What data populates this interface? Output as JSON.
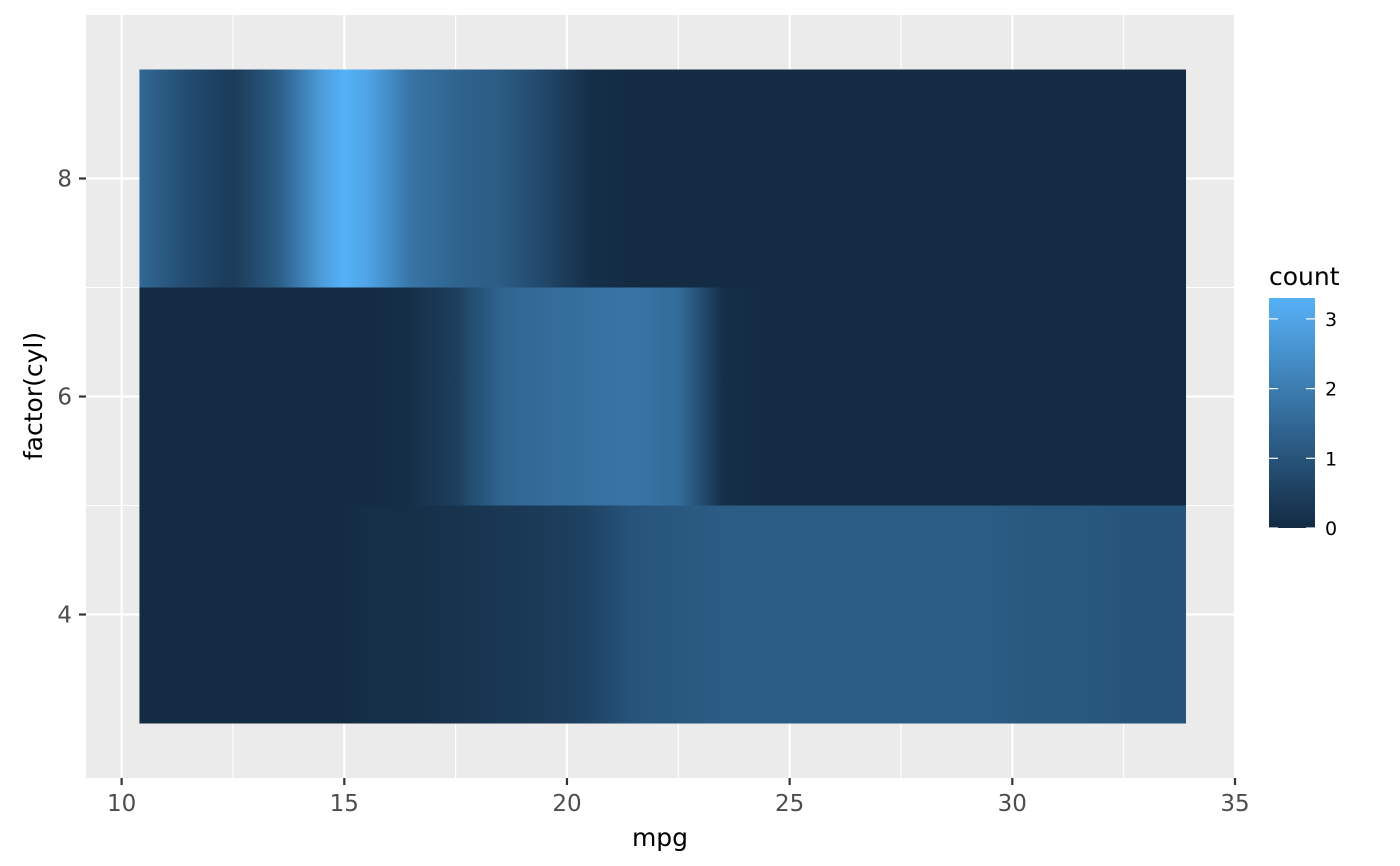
{
  "chart_data": {
    "type": "heatmap",
    "title": "",
    "xlabel": "mpg",
    "ylabel": "factor(cyl)",
    "xlim": [
      9.2,
      35.0
    ],
    "ylim": [
      2.5,
      9.5
    ],
    "x_ticks": [
      "10",
      "15",
      "20",
      "25",
      "30",
      "35"
    ],
    "y_ticks": [
      "4",
      "6",
      "8"
    ],
    "grid": true,
    "legend": {
      "title": "count",
      "position": "right",
      "ticks": [
        "0",
        "1",
        "2",
        "3"
      ],
      "range": [
        0,
        3.3
      ],
      "low_color": "#132B43",
      "high_color": "#56B1F7"
    },
    "x": [
      10.4,
      11.5,
      12.5,
      13.5,
      14.5,
      15.0,
      15.5,
      16.5,
      17.5,
      18.5,
      19.5,
      20.5,
      21.5,
      22.5,
      23.5,
      24.5,
      25.5,
      26.5,
      27.5,
      28.5,
      29.5,
      30.5,
      31.5,
      32.5,
      33.9
    ],
    "rows": [
      {
        "y": 8,
        "ymin": 7,
        "ymax": 9,
        "values": [
          1.5,
          0.8,
          0.4,
          1.2,
          2.8,
          3.3,
          3.0,
          1.8,
          1.4,
          1.2,
          0.7,
          0.1,
          0.0,
          0.0,
          0.0,
          0.0,
          0.0,
          0.0,
          0.0,
          0.0,
          0.0,
          0.0,
          0.0,
          0.0,
          0.0
        ]
      },
      {
        "y": 6,
        "ymin": 5,
        "ymax": 7,
        "values": [
          0.0,
          0.0,
          0.0,
          0.0,
          0.0,
          0.0,
          0.0,
          0.1,
          0.5,
          1.4,
          1.6,
          1.7,
          1.8,
          1.6,
          0.1,
          0.0,
          0.0,
          0.0,
          0.0,
          0.0,
          0.0,
          0.0,
          0.0,
          0.0,
          0.0
        ]
      },
      {
        "y": 4,
        "ymin": 3,
        "ymax": 5,
        "values": [
          0.0,
          0.0,
          0.0,
          0.0,
          0.0,
          0.0,
          0.1,
          0.1,
          0.2,
          0.3,
          0.4,
          0.6,
          1.0,
          1.1,
          1.2,
          1.2,
          1.2,
          1.2,
          1.2,
          1.2,
          1.2,
          1.1,
          1.1,
          1.0,
          1.0
        ]
      }
    ]
  }
}
